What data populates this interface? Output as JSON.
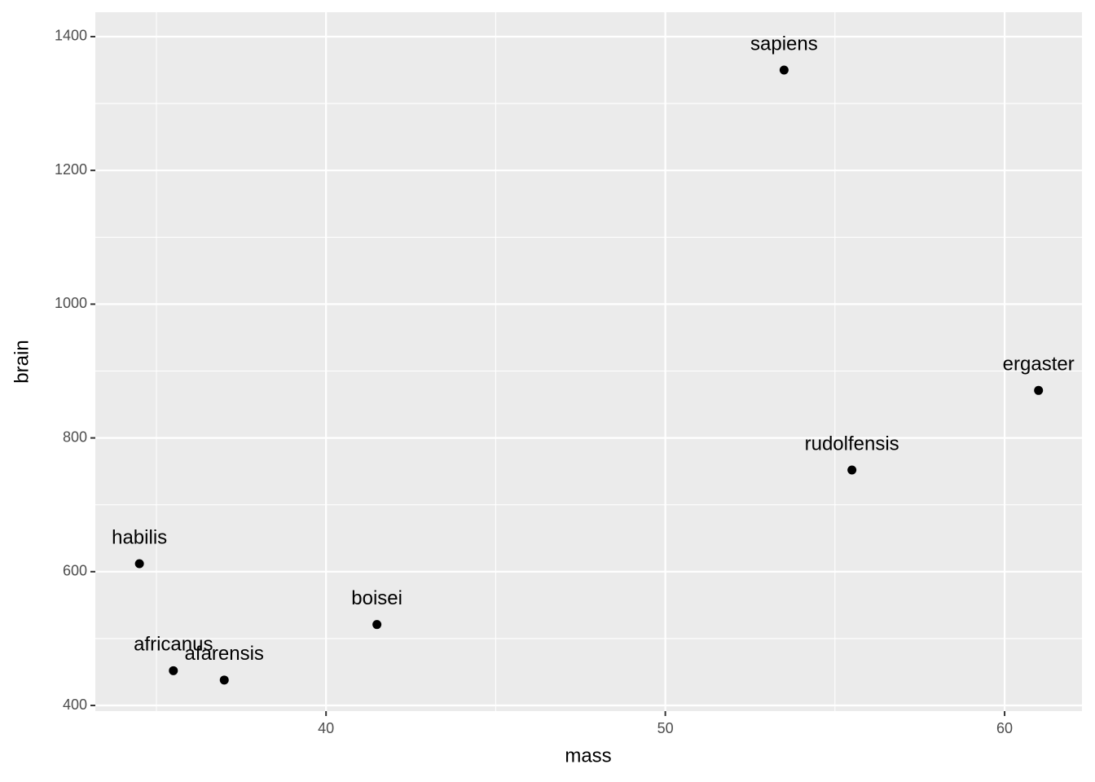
{
  "chart_data": {
    "type": "scatter",
    "x_label": "mass",
    "y_label": "brain",
    "labels": [
      "afarensis",
      "africanus",
      "habilis",
      "boisei",
      "rudolfensis",
      "ergaster",
      "sapiens"
    ],
    "x": [
      37.0,
      35.5,
      34.5,
      41.5,
      55.5,
      61.0,
      53.5
    ],
    "y": [
      438,
      452,
      612,
      521,
      752,
      871,
      1350
    ],
    "color": "#000000",
    "panel_color": "#ebebeb",
    "grid": true,
    "xlim": [
      33.2,
      62.28
    ],
    "ylim": [
      391.5,
      1436.5
    ],
    "xticks": [
      40,
      50,
      60
    ],
    "yticks": [
      400,
      600,
      800,
      1000,
      1200,
      1400
    ],
    "x_minor_ticks": [
      35,
      45,
      55
    ],
    "y_minor_ticks": [
      500,
      700,
      900,
      1100,
      1300
    ]
  }
}
